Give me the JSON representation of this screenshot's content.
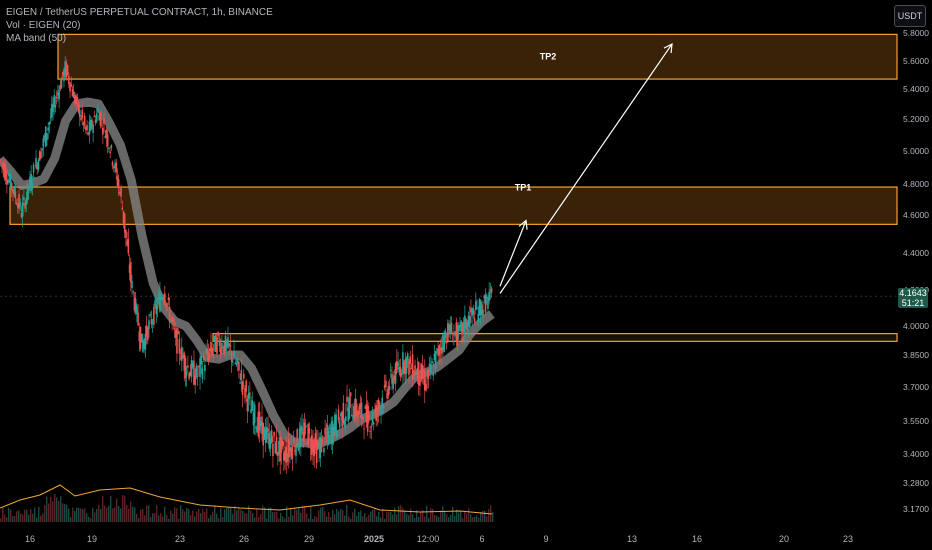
{
  "legend": {
    "symbol_line": "EIGEN / TetherUS PERPETUAL CONTRACT, 1h, BINANCE",
    "volume_line": "Vol · EIGEN (20)",
    "ma_line": "MA band (50)"
  },
  "currency_button": "USDT",
  "price_label": {
    "price": "4.1643",
    "countdown": "51:21"
  },
  "colors": {
    "background": "#000000",
    "zone_fill": "#3a2208",
    "zone_border": "#f7a22e",
    "up_candle": "#26a69a",
    "down_candle": "#ef5350",
    "ma_band": "#8a8a8a",
    "volume_ma": "#f0a63a",
    "arrow": "#ffffff",
    "axis_text": "#b2b5be"
  },
  "chart_data": {
    "type": "candlestick",
    "title": "EIGEN / TetherUS PERPETUAL CONTRACT, 1h, BINANCE",
    "y_axis": {
      "scale": "log",
      "ticks": [
        "5.8000",
        "5.6000",
        "5.4000",
        "5.2000",
        "5.0000",
        "4.8000",
        "4.6000",
        "4.4000",
        "4.2000",
        "4.0000",
        "3.8500",
        "3.7000",
        "3.5500",
        "3.4000",
        "3.2800",
        "3.1700"
      ],
      "range": [
        3.14,
        5.9
      ]
    },
    "x_axis": {
      "ticks": [
        "16",
        "19",
        "23",
        "26",
        "29",
        "2025",
        "12:00",
        "6",
        "9",
        "13",
        "16",
        "20",
        "23"
      ]
    },
    "zones": [
      {
        "label": "TP2",
        "low": 5.47,
        "high": 5.79
      },
      {
        "label": "TP1",
        "low": 4.55,
        "high": 4.78
      },
      {
        "label": "",
        "low": 3.92,
        "high": 3.96
      }
    ],
    "arrows": [
      {
        "from": {
          "x": "6",
          "y": 4.22
        },
        "to": {
          "x": "9",
          "y": 4.57
        }
      },
      {
        "from": {
          "x": "6",
          "y": 4.18
        },
        "to": {
          "x": "15",
          "y": 5.72
        }
      }
    ],
    "price_path": [
      [
        0,
        4.95
      ],
      [
        1,
        4.8
      ],
      [
        2,
        4.62
      ],
      [
        3,
        4.85
      ],
      [
        4,
        5.05
      ],
      [
        5,
        5.3
      ],
      [
        6,
        5.55
      ],
      [
        7,
        5.3
      ],
      [
        8,
        5.1
      ],
      [
        9,
        5.25
      ],
      [
        10,
        5.05
      ],
      [
        11,
        4.75
      ],
      [
        12,
        4.25
      ],
      [
        13,
        3.9
      ],
      [
        14,
        4.05
      ],
      [
        15,
        4.2
      ],
      [
        16,
        3.95
      ],
      [
        17,
        3.8
      ],
      [
        18,
        3.75
      ],
      [
        19,
        3.85
      ],
      [
        20,
        3.92
      ],
      [
        21,
        3.88
      ],
      [
        22,
        3.75
      ],
      [
        23,
        3.6
      ],
      [
        24,
        3.5
      ],
      [
        25,
        3.45
      ],
      [
        26,
        3.4
      ],
      [
        27,
        3.45
      ],
      [
        28,
        3.5
      ],
      [
        29,
        3.42
      ],
      [
        30,
        3.48
      ],
      [
        31,
        3.55
      ],
      [
        32,
        3.62
      ],
      [
        33,
        3.58
      ],
      [
        34,
        3.55
      ],
      [
        35,
        3.65
      ],
      [
        36,
        3.75
      ],
      [
        37,
        3.82
      ],
      [
        38,
        3.78
      ],
      [
        39,
        3.72
      ],
      [
        40,
        3.85
      ],
      [
        41,
        3.98
      ],
      [
        42,
        3.95
      ],
      [
        43,
        4.05
      ],
      [
        44,
        4.1
      ],
      [
        45,
        4.16
      ]
    ],
    "volume_series": {
      "name": "Vol · EIGEN (20)"
    },
    "ma_series": {
      "name": "MA band (50)"
    }
  }
}
